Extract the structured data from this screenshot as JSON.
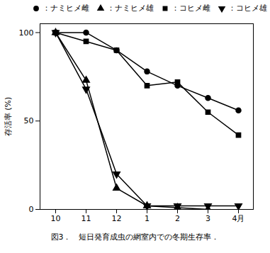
{
  "chart_data": {
    "type": "line",
    "categories": [
      "10",
      "11",
      "12",
      "1",
      "2",
      "3",
      "4月"
    ],
    "series": [
      {
        "name": "：ナミヒメ雌",
        "values": [
          100,
          100,
          90,
          78,
          70,
          63,
          56
        ],
        "marker": "circle"
      },
      {
        "name": "：ナミヒメ雄",
        "values": [
          100,
          73,
          12,
          2,
          1,
          0,
          null
        ],
        "marker": "triangle"
      },
      {
        "name": "：コヒメ雌",
        "values": [
          100,
          95,
          90,
          70,
          72,
          55,
          42
        ],
        "marker": "square"
      },
      {
        "name": "：コヒメ雄",
        "values": [
          100,
          68,
          20,
          2,
          2,
          2,
          2
        ],
        "marker": "triangle-down"
      }
    ],
    "ylabel": "存活率 (%)",
    "ylim": [
      0,
      105
    ],
    "yticks": [
      0,
      50,
      100
    ],
    "caption": "図3．　短日発育成虫の網室内での冬期生存率．",
    "color": "#000000",
    "legend": "upper right"
  }
}
